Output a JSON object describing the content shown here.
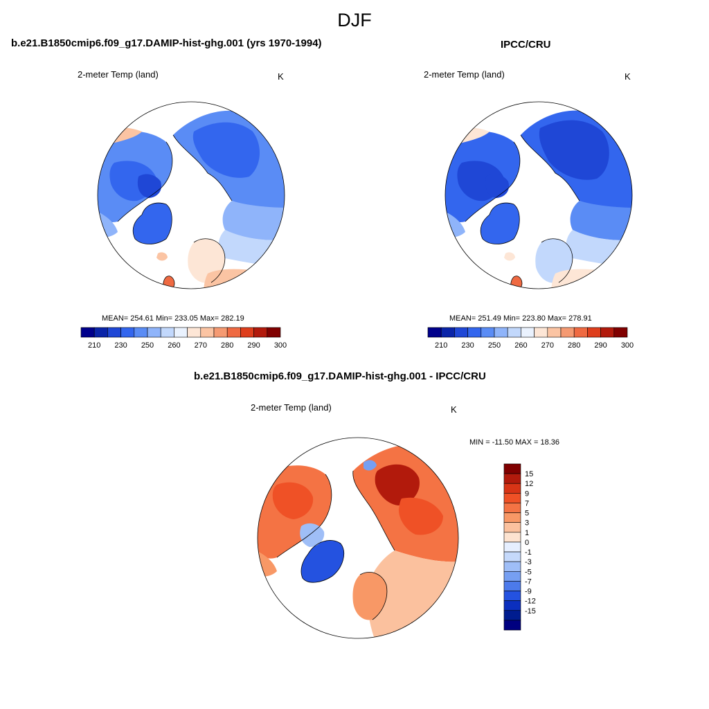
{
  "title": "DJF",
  "panels": [
    {
      "title": "b.e21.B1850cmip6.f09_g17.DAMIP-hist-ghg.001 (yrs 1970-1994)",
      "variable": "2-meter Temp (land)",
      "units": "K",
      "stats": "MEAN= 254.61  Min= 233.05  Max= 282.19"
    },
    {
      "title": "IPCC/CRU",
      "variable": "2-meter Temp (land)",
      "units": "K",
      "stats": "MEAN= 251.49  Min= 223.80  Max= 278.91"
    },
    {
      "title": "b.e21.B1850cmip6.f09_g17.DAMIP-hist-ghg.001 - IPCC/CRU",
      "variable": "2-meter Temp (land)",
      "units": "K",
      "stats": "MIN = -11.50 MAX =  18.36"
    }
  ],
  "colorbar_abs": {
    "labels": [
      "210",
      "230",
      "250",
      "260",
      "270",
      "280",
      "290",
      "300"
    ],
    "colors": [
      "#00008b",
      "#0a24a8",
      "#1f47d6",
      "#3366ee",
      "#5a8cf5",
      "#8fb4fa",
      "#c2d8fc",
      "#eaf2fe",
      "#fde6d6",
      "#fbc4a3",
      "#f59a72",
      "#ef6a42",
      "#de3e1c",
      "#b21a0c",
      "#800000"
    ]
  },
  "colorbar_diff": {
    "labels": [
      "15",
      "12",
      "9",
      "7",
      "5",
      "3",
      "1",
      "0",
      "-1",
      "-3",
      "-5",
      "-7",
      "-9",
      "-12",
      "-15"
    ],
    "colors": [
      "#800000",
      "#b21a0c",
      "#d83416",
      "#ef5126",
      "#f47344",
      "#f89866",
      "#fbc19e",
      "#fde3d0",
      "#e6efff",
      "#c5d9fb",
      "#9fbef7",
      "#769ff2",
      "#4c7aeb",
      "#2452e0",
      "#0b2fbe",
      "#001c8f",
      "#000080"
    ]
  }
}
